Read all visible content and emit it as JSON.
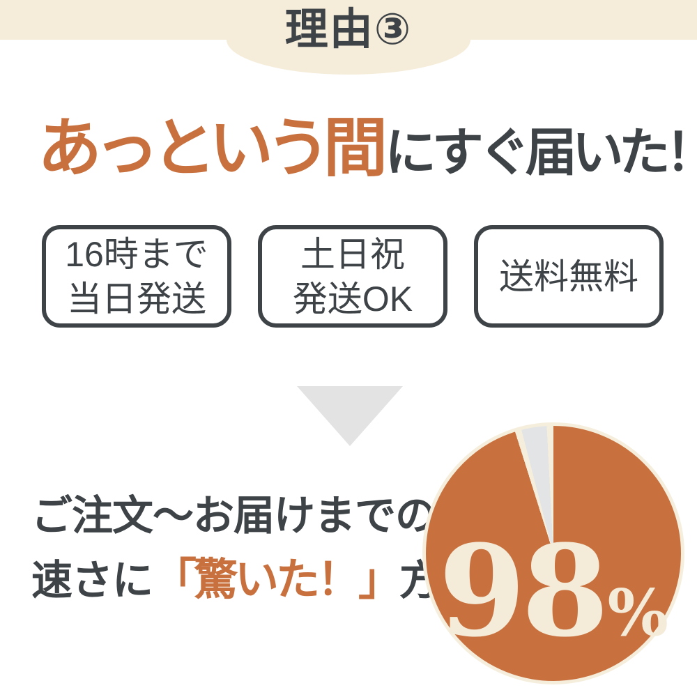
{
  "header": {
    "title": "理由③"
  },
  "headline": {
    "highlight": "あっという間",
    "rest": "にすぐ届いた！"
  },
  "badges": [
    {
      "line1": "16時まで",
      "line2": "当日発送"
    },
    {
      "line1": "土日祝",
      "line2": "発送OK"
    },
    {
      "line1": "送料無料",
      "line2": ""
    }
  ],
  "stat": {
    "caption_line1": "ご注文〜お届けまでの",
    "caption_line2_prefix": "速さに",
    "caption_line2_highlight": "「驚いた！」",
    "caption_line2_suffix": "方",
    "value": "98",
    "unit": "%"
  },
  "chart_data": {
    "type": "pie",
    "title": "ご注文〜お届けまでの速さに「驚いた！」方",
    "slices": [
      {
        "label": "「驚いた！」方",
        "value": 98,
        "color": "#c8713f"
      },
      {
        "label": "",
        "value": 2,
        "color": "#e2e4e5"
      }
    ],
    "center_label": "98%",
    "legend_position": "none",
    "start_of_gap_slice": "just left of 12 o'clock, separated by cream divider lines"
  },
  "colors": {
    "accent_orange": "#c8713f",
    "dark_text": "#3e4347",
    "beige_band": "#f5edda",
    "arrow_gray": "#e3e3e4",
    "pie_gap_gray": "#e2e4e5",
    "pie_outline_cream": "#f6eedd",
    "pie_text_cream": "#f4ebd9",
    "background": "#ffffff"
  }
}
